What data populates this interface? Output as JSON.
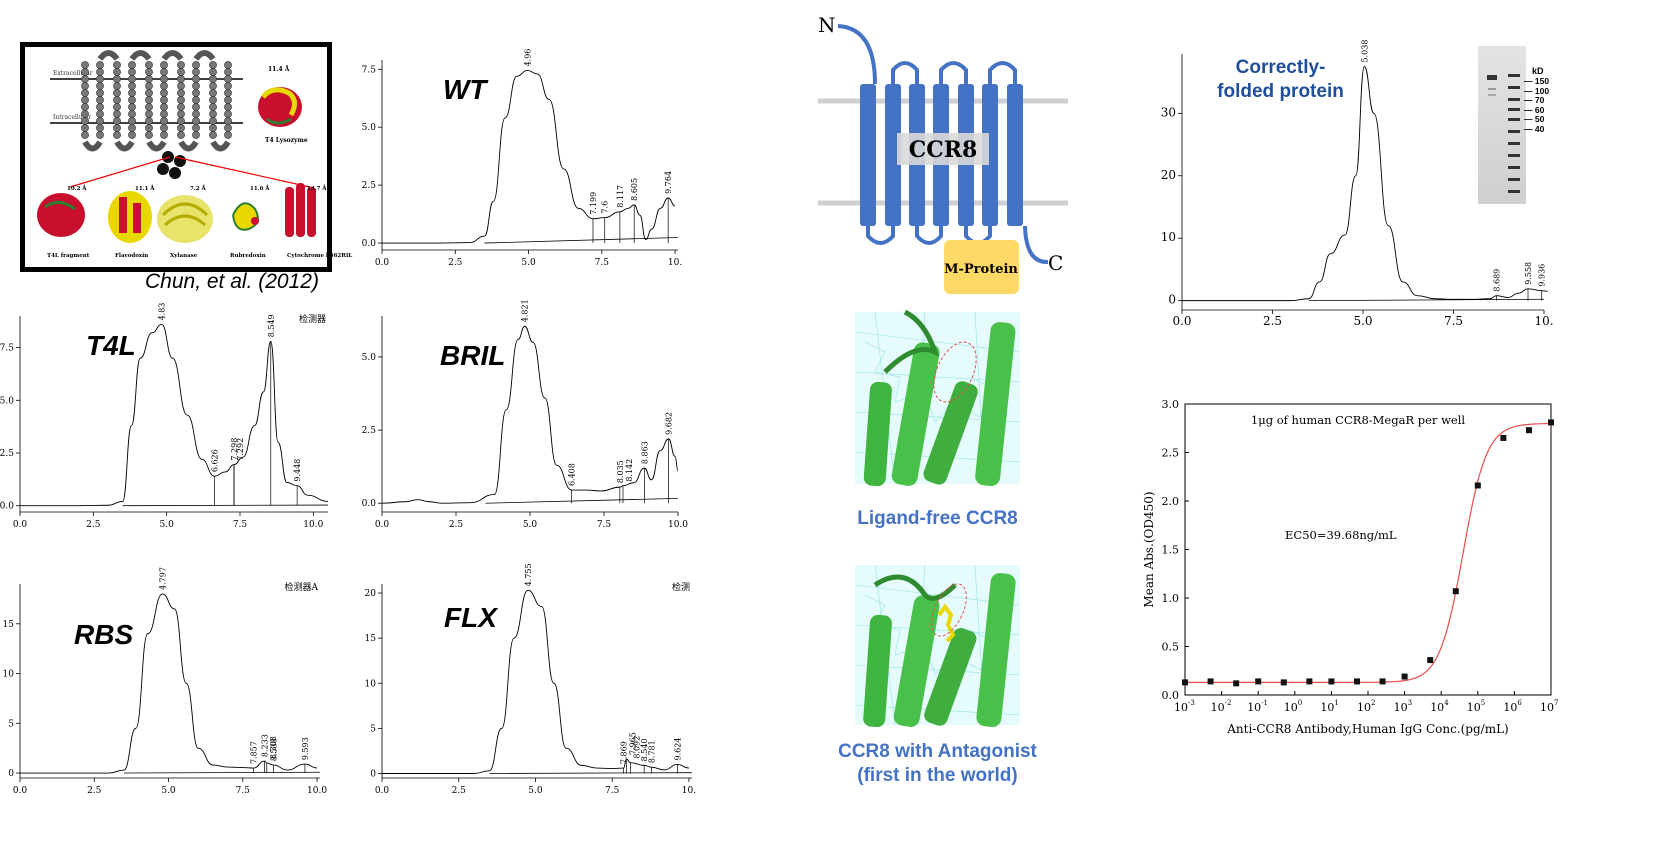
{
  "fusion_panel": {
    "citation": "Chun, et al. (2012)",
    "extracellular_label": "Extracellular",
    "intracellular_label": "Intracellular",
    "t4_label": "T4 Lysozyme",
    "t4_size": "11.4 Å",
    "proteins": [
      {
        "name": "T4L fragment",
        "size": "10.2 Å"
      },
      {
        "name": "Flavodoxin",
        "size": "11.1 Å"
      },
      {
        "name": "Xylanase",
        "size": "7.2 Å"
      },
      {
        "name": "Rubredoxin",
        "size": "11.6 Å"
      },
      {
        "name": "Cytochrome b562RIL",
        "size": "13.7 Å"
      }
    ]
  },
  "ccr8_topology": {
    "n_label": "N",
    "c_label": "C",
    "ccr8_label": "CCR8",
    "mprotein_label": "M-Protein"
  },
  "structures": {
    "ligand_free_caption": "Ligand-free CCR8",
    "antagonist_caption_line1": "CCR8 with Antagonist",
    "antagonist_caption_line2": "(first in the world)"
  },
  "gel": {
    "kd_label": "kD",
    "markers": [
      "150",
      "100",
      "70",
      "60",
      "50",
      "40"
    ]
  },
  "chart_data": [
    {
      "id": "wt",
      "type": "line",
      "title": "WT",
      "x": [
        0,
        1,
        2,
        3,
        3.5,
        3.8,
        4.2,
        4.6,
        4.96,
        5.3,
        5.7,
        6.2,
        6.7,
        7.199,
        7.6,
        8.117,
        8.4,
        8.605,
        8.8,
        9.0,
        9.2,
        9.5,
        9.764,
        10
      ],
      "y": [
        0,
        0,
        0,
        0.02,
        0.3,
        1.8,
        5.4,
        7.2,
        7.45,
        7.3,
        6.2,
        3.2,
        1.5,
        1.05,
        1.1,
        1.35,
        1.5,
        1.65,
        1.2,
        0.15,
        0.6,
        1.5,
        1.95,
        1.6
      ],
      "peak_labels": [
        "4.96",
        "7.199",
        "7.6",
        "8.117",
        "8.605",
        "9.764"
      ],
      "xticks": [
        "0.0",
        "2.5",
        "5.0",
        "7.5",
        "10."
      ],
      "yticks": [
        "0.0",
        "2.5",
        "5.0",
        "7.5"
      ],
      "xlim": [
        0,
        10.1
      ],
      "ylim": [
        -0.3,
        7.9
      ]
    },
    {
      "id": "t4l",
      "type": "line",
      "title": "T4L",
      "detector_label": "检测器",
      "x": [
        0,
        2,
        3,
        3.5,
        3.8,
        4.1,
        4.5,
        4.83,
        5.2,
        5.7,
        6.2,
        6.626,
        7.0,
        7.298,
        7.6,
        8.0,
        8.3,
        8.549,
        8.8,
        9.1,
        9.448,
        9.8,
        10.5
      ],
      "y": [
        0,
        0,
        0.02,
        0.2,
        3.8,
        7.0,
        8.2,
        8.6,
        7.0,
        4.3,
        2.2,
        1.4,
        1.6,
        1.95,
        2.3,
        3.8,
        5.4,
        7.8,
        3.0,
        1.1,
        0.95,
        0.5,
        0.2
      ],
      "peak_labels": [
        "4.83",
        "6.626",
        "7.298",
        "7.292",
        "8.549",
        "9.448"
      ],
      "xticks": [
        "0.0",
        "2.5",
        "5.0",
        "7.5",
        "10.0"
      ],
      "yticks": [
        "0.0",
        "2.5",
        "5.0",
        "7.5"
      ],
      "xlim": [
        0,
        10.5
      ],
      "ylim": [
        -0.3,
        9.0
      ]
    },
    {
      "id": "bril",
      "type": "line",
      "title": "BRIL",
      "x": [
        0,
        0.8,
        1.2,
        1.6,
        2,
        3,
        3.8,
        4.2,
        4.6,
        4.821,
        5.1,
        5.5,
        5.9,
        6.408,
        6.9,
        7.4,
        8.035,
        8.142,
        8.5,
        8.863,
        9.1,
        9.4,
        9.682,
        9.9,
        10
      ],
      "y": [
        0,
        0.05,
        0.12,
        0.05,
        0,
        0.02,
        0.3,
        3.2,
        5.6,
        6.05,
        5.5,
        3.6,
        1.3,
        0.45,
        0.45,
        0.42,
        0.55,
        0.6,
        0.7,
        1.2,
        0.8,
        1.8,
        2.2,
        1.6,
        1.1
      ],
      "peak_labels": [
        "4.821",
        "6.408",
        "8.035",
        "8.142",
        "8.863",
        "9.682"
      ],
      "xticks": [
        "0.0",
        "2.5",
        "5.0",
        "7.5",
        "10.0"
      ],
      "yticks": [
        "0.0",
        "2.5",
        "5.0"
      ],
      "xlim": [
        0,
        10.0
      ],
      "ylim": [
        -0.3,
        6.4
      ]
    },
    {
      "id": "rbs",
      "type": "line",
      "title": "RBS",
      "detector_label": "检测器A",
      "x": [
        0,
        2,
        3,
        3.5,
        3.9,
        4.3,
        4.797,
        5.2,
        5.6,
        6.0,
        6.5,
        7.0,
        7.5,
        7.857,
        8.233,
        8.308,
        8.538,
        9.0,
        9.593,
        10.0
      ],
      "y": [
        0,
        0,
        0,
        0.3,
        4.5,
        14.0,
        18.0,
        16.5,
        9.0,
        2.5,
        0.8,
        0.6,
        0.55,
        0.5,
        1.2,
        1.0,
        0.8,
        0.3,
        0.9,
        0.5
      ],
      "peak_labels": [
        "4.797",
        "7.857",
        "8.233",
        "8.308",
        "8.538",
        "9.593"
      ],
      "xticks": [
        "0.0",
        "2.5",
        "5.0",
        "7.5",
        "10.0"
      ],
      "yticks": [
        "0",
        "5",
        "10",
        "15"
      ],
      "xlim": [
        0,
        10.1
      ],
      "ylim": [
        -0.5,
        19.0
      ]
    },
    {
      "id": "flx",
      "type": "line",
      "title": "FLX",
      "detector_label": "检测",
      "x": [
        0,
        2,
        3,
        3.5,
        3.9,
        4.3,
        4.755,
        5.2,
        5.6,
        6.0,
        6.5,
        7.0,
        7.5,
        7.869,
        7.965,
        8.092,
        8.54,
        8.781,
        9.2,
        9.624,
        10.0
      ],
      "y": [
        0,
        0,
        0,
        0.3,
        5.0,
        15.0,
        20.3,
        18.5,
        10.0,
        2.8,
        0.9,
        0.6,
        0.55,
        0.6,
        1.6,
        1.2,
        0.9,
        0.7,
        0.4,
        1.0,
        0.6
      ],
      "peak_labels": [
        "4.755",
        "7.869",
        "7.965",
        "8.092",
        "8.540",
        "8.781",
        "9.624"
      ],
      "xticks": [
        "0.0",
        "2.5",
        "5.0",
        "7.5",
        "10."
      ],
      "yticks": [
        "0",
        "5",
        "10",
        "15",
        "20"
      ],
      "xlim": [
        0,
        10.1
      ],
      "ylim": [
        -0.5,
        21.0
      ]
    },
    {
      "id": "folded",
      "type": "line",
      "title": "Correctly-folded protein",
      "x": [
        0,
        2,
        3,
        3.5,
        3.8,
        4.1,
        4.5,
        4.8,
        5.038,
        5.3,
        5.7,
        6.1,
        6.5,
        7.0,
        7.5,
        8.0,
        8.5,
        8.689,
        9.0,
        9.3,
        9.558,
        9.936,
        10.1
      ],
      "y": [
        0,
        0,
        0,
        0.3,
        3.0,
        7.5,
        10.5,
        20.0,
        37.5,
        30.0,
        12.0,
        3.0,
        0.8,
        0.3,
        0.2,
        0.2,
        0.3,
        0.8,
        0.5,
        1.2,
        1.9,
        1.6,
        1.5
      ],
      "peak_labels": [
        "5.038",
        "8.689",
        "9.558",
        "9.936"
      ],
      "xticks": [
        "0.0",
        "2.5",
        "5.0",
        "7.5",
        "10."
      ],
      "yticks": [
        "0",
        "10",
        "20",
        "30"
      ],
      "xlim": [
        0,
        10.0
      ],
      "ylim": [
        -1.5,
        39.5
      ]
    },
    {
      "id": "elisa",
      "type": "scatter",
      "annotation_title": "1μg of human CCR8-MegaR per well",
      "ec50_label": "EC50=39.68ng/mL",
      "xlabel": "Anti-CCR8 Antibody,Human IgG Conc.(pg/mL)",
      "ylabel": "Mean Abs.(OD450)",
      "log_x": true,
      "x": [
        0.001,
        0.005,
        0.025,
        0.1,
        0.5,
        2.5,
        10,
        50,
        250,
        1000,
        5000,
        25000,
        100000,
        500000,
        2500000,
        10000000
      ],
      "y": [
        0.13,
        0.14,
        0.12,
        0.14,
        0.13,
        0.14,
        0.14,
        0.14,
        0.14,
        0.19,
        0.36,
        1.07,
        2.16,
        2.65,
        2.73,
        2.81
      ],
      "xticks_exp": [
        "-3",
        "-2",
        "-1",
        "0",
        "1",
        "2",
        "3",
        "4",
        "5",
        "6",
        "7"
      ],
      "yticks": [
        "0.0",
        "0.5",
        "1.0",
        "1.5",
        "2.0",
        "2.5",
        "3.0"
      ],
      "xlim": [
        0.001,
        10000000
      ],
      "ylim": [
        0,
        3.0
      ],
      "colors": {
        "curve": "#e84c4c",
        "points": "#111111"
      }
    }
  ]
}
